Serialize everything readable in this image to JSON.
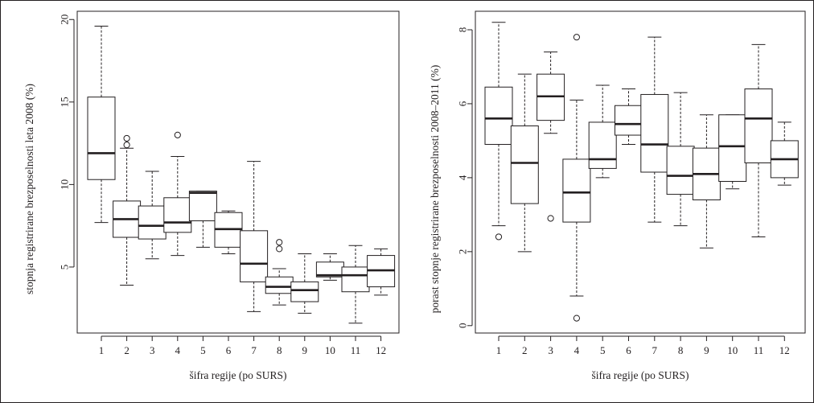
{
  "chart_data": [
    {
      "type": "box",
      "xlabel": "šifra regije (po SURS)",
      "ylabel": "stopnja registrirane brezposelnosti leta 2008 (%)",
      "categories": [
        "1",
        "2",
        "3",
        "4",
        "5",
        "6",
        "7",
        "8",
        "9",
        "10",
        "11",
        "12"
      ],
      "ylim": [
        1,
        20.5
      ],
      "yticks": [
        5,
        10,
        15,
        20
      ],
      "boxes": [
        {
          "whisker_low": 7.7,
          "q1": 10.3,
          "median": 11.9,
          "q3": 15.3,
          "whisker_high": 19.6,
          "outliers": []
        },
        {
          "whisker_low": 3.9,
          "q1": 6.8,
          "median": 7.9,
          "q3": 9.0,
          "whisker_high": 12.2,
          "outliers": [
            12.4,
            12.8
          ]
        },
        {
          "whisker_low": 5.5,
          "q1": 6.7,
          "median": 7.5,
          "q3": 8.7,
          "whisker_high": 10.8,
          "outliers": []
        },
        {
          "whisker_low": 5.7,
          "q1": 7.1,
          "median": 7.7,
          "q3": 9.2,
          "whisker_high": 11.7,
          "outliers": [
            13.0
          ]
        },
        {
          "whisker_low": 6.2,
          "q1": 7.8,
          "median": 9.5,
          "q3": 9.6,
          "whisker_high": 9.6,
          "outliers": []
        },
        {
          "whisker_low": 5.8,
          "q1": 6.2,
          "median": 7.3,
          "q3": 8.3,
          "whisker_high": 8.4,
          "outliers": []
        },
        {
          "whisker_low": 2.3,
          "q1": 4.1,
          "median": 5.2,
          "q3": 7.2,
          "whisker_high": 11.4,
          "outliers": []
        },
        {
          "whisker_low": 2.7,
          "q1": 3.4,
          "median": 3.8,
          "q3": 4.4,
          "whisker_high": 4.9,
          "outliers": [
            6.1,
            6.5
          ]
        },
        {
          "whisker_low": 2.2,
          "q1": 2.9,
          "median": 3.6,
          "q3": 4.1,
          "whisker_high": 5.8,
          "outliers": []
        },
        {
          "whisker_low": 4.2,
          "q1": 4.4,
          "median": 4.5,
          "q3": 5.3,
          "whisker_high": 5.8,
          "outliers": []
        },
        {
          "whisker_low": 1.6,
          "q1": 3.5,
          "median": 4.5,
          "q3": 5.0,
          "whisker_high": 6.3,
          "outliers": []
        },
        {
          "whisker_low": 3.3,
          "q1": 3.8,
          "median": 4.8,
          "q3": 5.7,
          "whisker_high": 6.1,
          "outliers": []
        }
      ]
    },
    {
      "type": "box",
      "xlabel": "šifra regije (po SURS)",
      "ylabel": "porast stopnje registrirane brezposelnosti 2008–2011 (%)",
      "categories": [
        "1",
        "2",
        "3",
        "4",
        "5",
        "6",
        "7",
        "8",
        "9",
        "10",
        "11",
        "12"
      ],
      "ylim": [
        -0.2,
        8.5
      ],
      "yticks": [
        0,
        2,
        4,
        6,
        8
      ],
      "boxes": [
        {
          "whisker_low": 2.7,
          "q1": 4.9,
          "median": 5.6,
          "q3": 6.45,
          "whisker_high": 8.2,
          "outliers": [
            2.4
          ]
        },
        {
          "whisker_low": 2.0,
          "q1": 3.3,
          "median": 4.4,
          "q3": 5.4,
          "whisker_high": 6.8,
          "outliers": []
        },
        {
          "whisker_low": 5.2,
          "q1": 5.55,
          "median": 6.2,
          "q3": 6.8,
          "whisker_high": 7.4,
          "outliers": [
            2.9
          ]
        },
        {
          "whisker_low": 0.8,
          "q1": 2.8,
          "median": 3.6,
          "q3": 4.5,
          "whisker_high": 6.1,
          "outliers": [
            7.8,
            0.2
          ]
        },
        {
          "whisker_low": 4.0,
          "q1": 4.25,
          "median": 4.5,
          "q3": 5.5,
          "whisker_high": 6.5,
          "outliers": []
        },
        {
          "whisker_low": 4.9,
          "q1": 5.15,
          "median": 5.45,
          "q3": 5.95,
          "whisker_high": 6.4,
          "outliers": []
        },
        {
          "whisker_low": 2.8,
          "q1": 4.15,
          "median": 4.9,
          "q3": 6.25,
          "whisker_high": 7.8,
          "outliers": []
        },
        {
          "whisker_low": 2.7,
          "q1": 3.55,
          "median": 4.05,
          "q3": 4.85,
          "whisker_high": 6.3,
          "outliers": []
        },
        {
          "whisker_low": 2.1,
          "q1": 3.4,
          "median": 4.1,
          "q3": 4.8,
          "whisker_high": 5.7,
          "outliers": []
        },
        {
          "whisker_low": 3.7,
          "q1": 3.9,
          "median": 4.85,
          "q3": 5.7,
          "whisker_high": 5.7,
          "outliers": []
        },
        {
          "whisker_low": 2.4,
          "q1": 4.4,
          "median": 5.6,
          "q3": 6.4,
          "whisker_high": 7.6,
          "outliers": []
        },
        {
          "whisker_low": 3.8,
          "q1": 4.0,
          "median": 4.5,
          "q3": 5.0,
          "whisker_high": 5.5,
          "outliers": []
        }
      ]
    }
  ]
}
